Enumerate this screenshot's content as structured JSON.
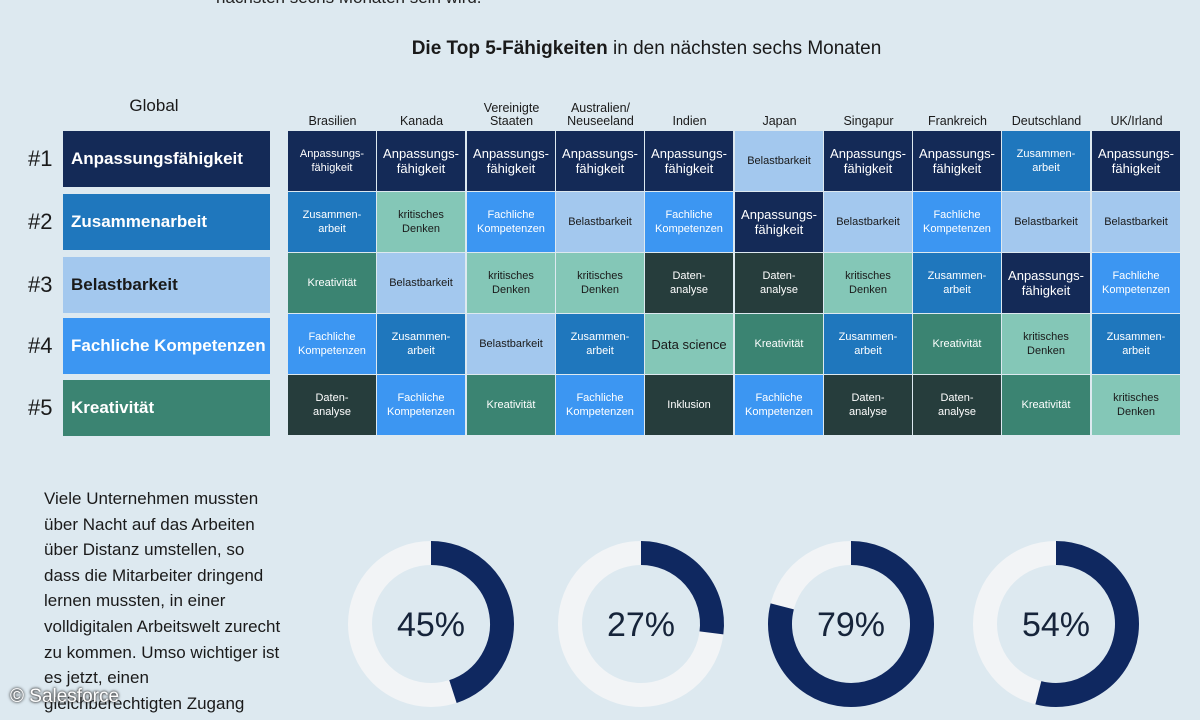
{
  "header": {
    "top_text": "nächsten sechs Monaten sein wird.",
    "title_bold": "Die Top 5-Fähigkeiten",
    "title_rest": " in den nächsten sechs Monaten"
  },
  "colors": {
    "navy": "#142a57",
    "blue": "#1f77bd",
    "light_blue": "#a3c8ee",
    "bright_blue": "#3c96f2",
    "teal": "#3b8472",
    "mint": "#84c7b7",
    "dark_slate": "#263d3c",
    "donut_track": "#f2f4f6",
    "donut_fill": "#0f2860"
  },
  "chart_data": [
    {
      "type": "table",
      "title": "Die Top 5-Fähigkeiten in den nächsten sechs Monaten",
      "global_label": "Global",
      "ranks": [
        "#1",
        "#2",
        "#3",
        "#4",
        "#5"
      ],
      "global": [
        {
          "label": "Anpassungsfähigkeit",
          "color": "navy"
        },
        {
          "label": "Zusammenarbeit",
          "color": "blue"
        },
        {
          "label": "Belastbarkeit",
          "color": "light_blue"
        },
        {
          "label": "Fachliche Kompetenzen",
          "color": "bright_blue"
        },
        {
          "label": "Kreativität",
          "color": "teal"
        }
      ],
      "countries": [
        {
          "name": "Brasilien",
          "cells": [
            {
              "t": "Anpassungs-\nfähigkeit",
              "c": "navy"
            },
            {
              "t": "Zusammen-\narbeit",
              "c": "blue"
            },
            {
              "t": "Kreativität",
              "c": "teal"
            },
            {
              "t": "Fachliche\nKompetenzen",
              "c": "bright_blue"
            },
            {
              "t": "Daten-\nanalyse",
              "c": "dark_slate"
            }
          ]
        },
        {
          "name": "Kanada",
          "cells": [
            {
              "t": "Anpassungs-\nfähigkeit",
              "c": "navy",
              "big": true
            },
            {
              "t": "kritisches\nDenken",
              "c": "mint"
            },
            {
              "t": "Belastbarkeit",
              "c": "light_blue"
            },
            {
              "t": "Zusammen-\narbeit",
              "c": "blue"
            },
            {
              "t": "Fachliche\nKompetenzen",
              "c": "bright_blue"
            }
          ]
        },
        {
          "name": "Vereinigte\nStaaten",
          "cells": [
            {
              "t": "Anpassungs-\nfähigkeit",
              "c": "navy",
              "big": true
            },
            {
              "t": "Fachliche\nKompetenzen",
              "c": "bright_blue"
            },
            {
              "t": "kritisches\nDenken",
              "c": "mint"
            },
            {
              "t": "Belastbarkeit",
              "c": "light_blue"
            },
            {
              "t": "Kreativität",
              "c": "teal"
            }
          ]
        },
        {
          "name": "Australien/\nNeuseeland",
          "cells": [
            {
              "t": "Anpassungs-\nfähigkeit",
              "c": "navy",
              "big": true
            },
            {
              "t": "Belastbarkeit",
              "c": "light_blue"
            },
            {
              "t": "kritisches\nDenken",
              "c": "mint"
            },
            {
              "t": "Zusammen-\narbeit",
              "c": "blue"
            },
            {
              "t": "Fachliche\nKompetenzen",
              "c": "bright_blue"
            }
          ]
        },
        {
          "name": "Indien",
          "cells": [
            {
              "t": "Anpassungs-\nfähigkeit",
              "c": "navy",
              "big": true
            },
            {
              "t": "Fachliche\nKompetenzen",
              "c": "bright_blue"
            },
            {
              "t": "Daten-\nanalyse",
              "c": "dark_slate"
            },
            {
              "t": "Data science",
              "c": "mint",
              "big": true
            },
            {
              "t": "Inklusion",
              "c": "dark_slate"
            }
          ]
        },
        {
          "name": "Japan",
          "cells": [
            {
              "t": "Belastbarkeit",
              "c": "light_blue"
            },
            {
              "t": "Anpassungs-\nfähigkeit",
              "c": "navy",
              "big": true
            },
            {
              "t": "Daten-\nanalyse",
              "c": "dark_slate"
            },
            {
              "t": "Kreativität",
              "c": "teal"
            },
            {
              "t": "Fachliche\nKompetenzen",
              "c": "bright_blue"
            }
          ]
        },
        {
          "name": "Singapur",
          "cells": [
            {
              "t": "Anpassungs-\nfähigkeit",
              "c": "navy",
              "big": true
            },
            {
              "t": "Belastbarkeit",
              "c": "light_blue"
            },
            {
              "t": "kritisches\nDenken",
              "c": "mint"
            },
            {
              "t": "Zusammen-\narbeit",
              "c": "blue"
            },
            {
              "t": "Daten-\nanalyse",
              "c": "dark_slate"
            }
          ]
        },
        {
          "name": "Frankreich",
          "cells": [
            {
              "t": "Anpassungs-\nfähigkeit",
              "c": "navy",
              "big": true
            },
            {
              "t": "Fachliche\nKompetenzen",
              "c": "bright_blue"
            },
            {
              "t": "Zusammen-\narbeit",
              "c": "blue"
            },
            {
              "t": "Kreativität",
              "c": "teal"
            },
            {
              "t": "Daten-\nanalyse",
              "c": "dark_slate"
            }
          ]
        },
        {
          "name": "Deutschland",
          "cells": [
            {
              "t": "Zusammen-\narbeit",
              "c": "blue"
            },
            {
              "t": "Belastbarkeit",
              "c": "light_blue"
            },
            {
              "t": "Anpassungs-\nfähigkeit",
              "c": "navy",
              "big": true
            },
            {
              "t": "kritisches\nDenken",
              "c": "mint"
            },
            {
              "t": "Kreativität",
              "c": "teal"
            }
          ]
        },
        {
          "name": "UK/Irland",
          "cells": [
            {
              "t": "Anpassungs-\nfähigkeit",
              "c": "navy",
              "big": true
            },
            {
              "t": "Belastbarkeit",
              "c": "light_blue"
            },
            {
              "t": "Fachliche\nKompetenzen",
              "c": "bright_blue"
            },
            {
              "t": "Zusammen-\narbeit",
              "c": "blue"
            },
            {
              "t": "kritisches\nDenken",
              "c": "mint"
            }
          ]
        }
      ]
    },
    {
      "type": "pie",
      "subtype": "donut",
      "values": [
        45,
        27,
        79,
        54
      ],
      "labels": [
        "45%",
        "27%",
        "79%",
        "54%"
      ]
    }
  ],
  "side_text": "Viele Unternehmen mussten über Nacht auf das Arbeiten über Distanz umstellen, so dass die Mitarbeiter dringend lernen mussten, in einer volldigitalen Arbeitswelt zurecht zu kommen. Umso wichtiger ist es jetzt, einen gleichberechtigten Zugang",
  "footer": "© Salesforce"
}
